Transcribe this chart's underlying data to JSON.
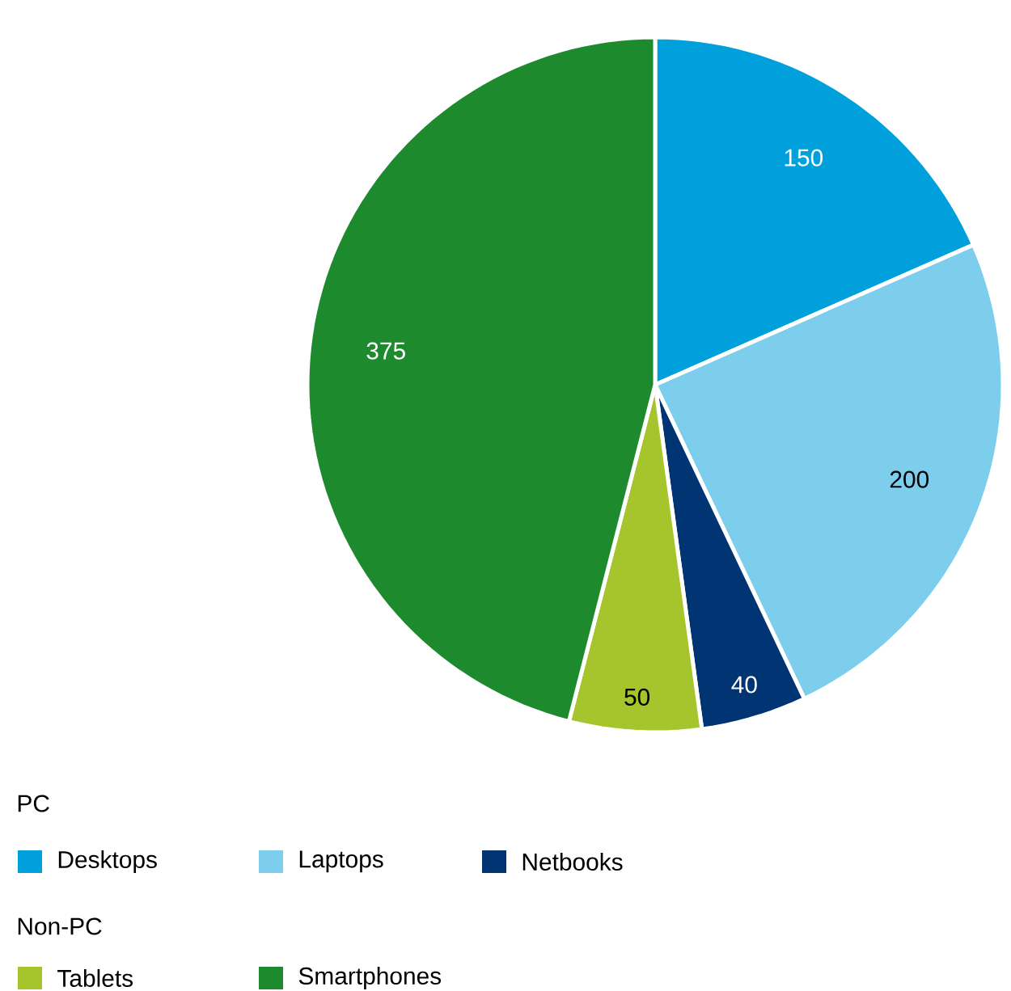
{
  "chart_data": {
    "type": "pie",
    "categories": [
      "Desktops",
      "Laptops",
      "Netbooks",
      "Tablets",
      "Smartphones"
    ],
    "values": [
      150,
      200,
      40,
      50,
      375
    ],
    "colors": [
      "#00a0dc",
      "#7dcdec",
      "#003473",
      "#a6c42b",
      "#1e8a2e"
    ],
    "data_labels": true,
    "legend": "bottom left",
    "annotations": [
      "PC",
      "Non-PC"
    ]
  }
}
